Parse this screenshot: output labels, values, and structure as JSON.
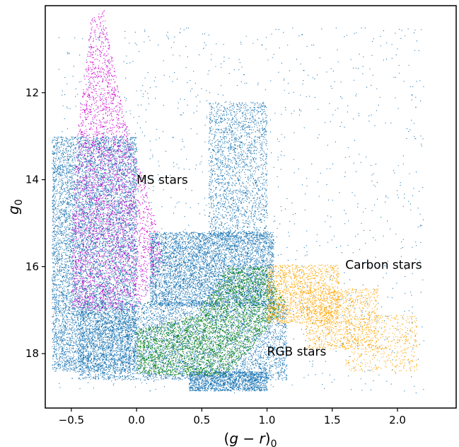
{
  "chart_data": {
    "type": "scatter",
    "title": "",
    "xlabel_parts": {
      "open": "(",
      "var": "g",
      "minus": " − ",
      "var2": "r",
      "close": ")",
      "sub": "0"
    },
    "ylabel_parts": {
      "var": "g",
      "sub": "0"
    },
    "xlim": [
      -0.7,
      2.45
    ],
    "ylim": [
      19.25,
      10.0
    ],
    "y_inverted": true,
    "grid": false,
    "x_ticks": [
      {
        "value": -0.5,
        "label": "−0.5"
      },
      {
        "value": 0.0,
        "label": "0.0"
      },
      {
        "value": 0.5,
        "label": "0.5"
      },
      {
        "value": 1.0,
        "label": "1.0"
      },
      {
        "value": 1.5,
        "label": "1.5"
      },
      {
        "value": 2.0,
        "label": "2.0"
      }
    ],
    "y_ticks": [
      {
        "value": 12,
        "label": "12"
      },
      {
        "value": 14,
        "label": "14"
      },
      {
        "value": 16,
        "label": "16"
      },
      {
        "value": 18,
        "label": "18"
      }
    ],
    "annotations": [
      {
        "text": "MS stars",
        "x": 0.0,
        "y": 14.0
      },
      {
        "text": "Carbon stars",
        "x": 1.6,
        "y": 15.95
      },
      {
        "text": "RGB stars",
        "x": 1.0,
        "y": 17.95
      }
    ],
    "series": [
      {
        "color": "#1f77b4",
        "regions": [
          {
            "x0": -0.65,
            "x1": 0.0,
            "y0": 13.0,
            "y1": 18.4,
            "n": 9000
          },
          {
            "x0": -0.45,
            "x1": 1.15,
            "y0": 16.8,
            "y1": 18.6,
            "n": 7000
          },
          {
            "x0": 0.1,
            "x1": 1.05,
            "y0": 15.2,
            "y1": 16.9,
            "n": 5500
          },
          {
            "x0": 0.4,
            "x1": 1.0,
            "y0": 18.4,
            "y1": 18.85,
            "n": 1500
          },
          {
            "x0": 0.55,
            "x1": 1.0,
            "y0": 12.2,
            "y1": 15.4,
            "n": 2000
          },
          {
            "x0": -0.6,
            "x1": 2.2,
            "y0": 10.5,
            "y1": 18.9,
            "n": 1400
          }
        ]
      },
      {
        "color": "#cc00cc",
        "polygon": [
          [
            -0.5,
            17.0
          ],
          [
            -0.5,
            15.0
          ],
          [
            -0.45,
            12.8
          ],
          [
            -0.4,
            11.5
          ],
          [
            -0.35,
            10.3
          ],
          [
            -0.25,
            10.1
          ],
          [
            -0.2,
            11.0
          ],
          [
            -0.1,
            12.5
          ],
          [
            0.0,
            13.5
          ],
          [
            0.1,
            14.5
          ],
          [
            0.15,
            15.0
          ],
          [
            0.2,
            15.9
          ],
          [
            0.0,
            17.0
          ]
        ],
        "n": 9000
      },
      {
        "color": "#008000",
        "polygon": [
          [
            0.0,
            17.45
          ],
          [
            0.45,
            17.1
          ],
          [
            0.7,
            16.0
          ],
          [
            1.0,
            16.0
          ],
          [
            1.15,
            16.9
          ],
          [
            1.05,
            17.25
          ],
          [
            0.8,
            18.1
          ],
          [
            0.7,
            18.5
          ],
          [
            0.4,
            18.5
          ],
          [
            0.0,
            18.45
          ]
        ],
        "n": 12000
      },
      {
        "color": "#ffa500",
        "regions": [
          {
            "x0": 1.0,
            "x1": 1.55,
            "y0": 15.95,
            "y1": 17.3,
            "n": 1400
          },
          {
            "x0": 1.3,
            "x1": 1.85,
            "y0": 16.5,
            "y1": 17.9,
            "n": 1000
          },
          {
            "x0": 1.6,
            "x1": 2.15,
            "y0": 17.1,
            "y1": 18.4,
            "n": 500
          }
        ]
      }
    ]
  }
}
